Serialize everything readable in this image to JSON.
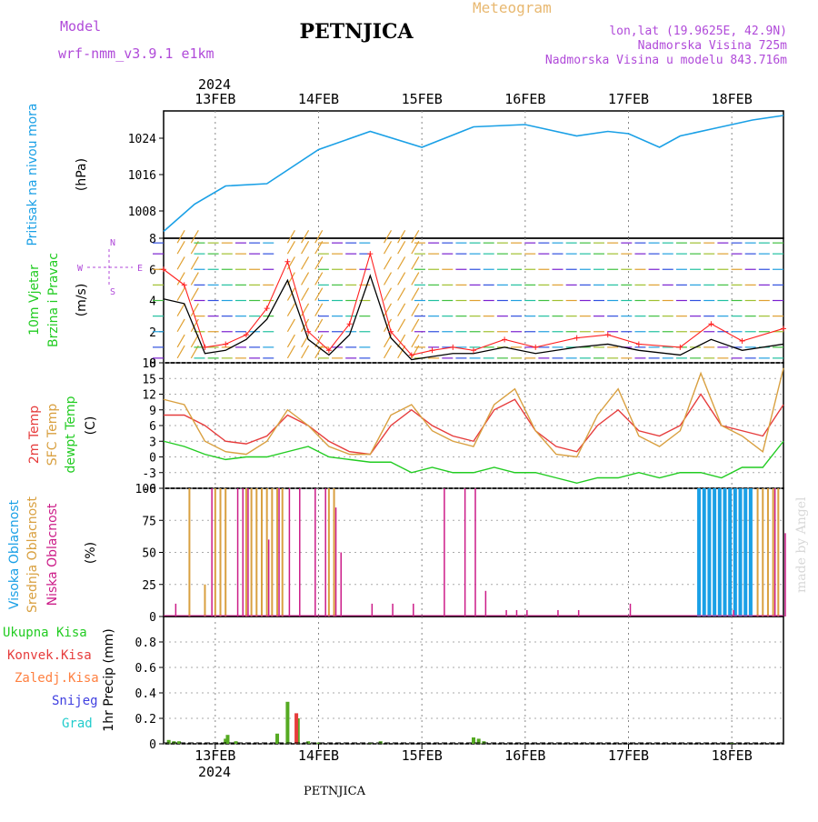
{
  "header": {
    "model_label": "Model",
    "model_name": "wrf-nmm_v3.9.1 e1km",
    "station": "PETNJICA",
    "meteogram": "Meteogram",
    "lonlat": "lon,lat (19.9625E, 42.9N)",
    "altitude": "Nadmorska Visina 725m",
    "model_altitude": "Nadmorska Visina u modelu 843.716m",
    "year": "2024",
    "footer_station": "PETNJICA",
    "watermark": "made by Angel"
  },
  "colors": {
    "pressure": "#1aa0e6",
    "t2m": "#e63c3c",
    "sfc": "#d9a040",
    "dewpt": "#22cc22",
    "high_cloud": "#1aa0e6",
    "mid_cloud": "#d9a040",
    "low_cloud": "#cc1c88",
    "total_precip": "#55aa22",
    "conv_precip": "#e63c3c",
    "zaledj": "#ff8040",
    "snow": "#4040e0",
    "grad": "#22cccc",
    "wind_speed": "#000000",
    "gust": "#ff2020"
  },
  "chart_data": [
    {
      "type": "line",
      "panel": "pressure",
      "ylabel": [
        "Pritisak na nivou mora",
        "(hPa)"
      ],
      "xticks": [
        "13FEB",
        "14FEB",
        "15FEB",
        "16FEB",
        "17FEB",
        "18FEB"
      ],
      "yticks": [
        1008,
        1016,
        1024
      ],
      "ylim": [
        1002,
        1030
      ],
      "x": [
        0.0,
        0.3,
        0.6,
        1.0,
        1.5,
        2.0,
        2.5,
        3.0,
        3.5,
        4.0,
        4.3,
        4.5,
        4.8,
        5.0,
        5.3,
        5.7,
        6.0
      ],
      "series": [
        {
          "values": [
            1003.5,
            1009.5,
            1013.5,
            1014.0,
            1021.5,
            1025.5,
            1022.0,
            1026.5,
            1027.0,
            1024.5,
            1025.5,
            1025.0,
            1022.0,
            1024.5,
            1026.0,
            1028.0,
            1029.0
          ]
        }
      ]
    },
    {
      "type": "line",
      "panel": "wind",
      "ylabel": [
        "10m Vjetar",
        "Brzina i Pravac",
        "(m/s)"
      ],
      "direction_key": [
        "N",
        "E",
        "W",
        "S"
      ],
      "yticks": [
        0,
        2,
        4,
        6,
        8
      ],
      "ylim": [
        0,
        8
      ],
      "x": [
        0.0,
        0.2,
        0.4,
        0.6,
        0.8,
        1.0,
        1.2,
        1.4,
        1.6,
        1.8,
        2.0,
        2.2,
        2.4,
        2.6,
        2.8,
        3.0,
        3.3,
        3.6,
        4.0,
        4.3,
        4.6,
        5.0,
        5.3,
        5.6,
        6.0
      ],
      "series": [
        {
          "values": [
            4.1,
            3.8,
            0.6,
            0.8,
            1.5,
            2.8,
            5.3,
            1.5,
            0.5,
            1.8,
            5.6,
            1.6,
            0.2,
            0.4,
            0.6,
            0.6,
            1.0,
            0.6,
            1.0,
            1.2,
            0.8,
            0.5,
            1.5,
            0.8,
            1.2
          ]
        },
        {
          "values": [
            6.0,
            5.0,
            1.0,
            1.2,
            1.8,
            3.5,
            6.5,
            2.0,
            0.8,
            2.5,
            7.0,
            2.0,
            0.5,
            0.8,
            1.0,
            0.8,
            1.5,
            1.0,
            1.6,
            1.8,
            1.2,
            1.0,
            2.5,
            1.4,
            2.2
          ]
        }
      ]
    },
    {
      "type": "line",
      "panel": "temperature",
      "ylabel": [
        "2m Temp",
        "SFC Temp",
        "dewpt Temp",
        "(C)"
      ],
      "yticks": [
        -6,
        -3,
        0,
        3,
        6,
        9,
        12,
        15,
        18
      ],
      "ylim": [
        -6,
        18
      ],
      "x": [
        0.0,
        0.2,
        0.4,
        0.6,
        0.8,
        1.0,
        1.2,
        1.4,
        1.6,
        1.8,
        2.0,
        2.2,
        2.4,
        2.6,
        2.8,
        3.0,
        3.2,
        3.4,
        3.6,
        3.8,
        4.0,
        4.2,
        4.4,
        4.6,
        4.8,
        5.0,
        5.2,
        5.4,
        5.6,
        5.8,
        6.0
      ],
      "series": [
        {
          "name": "2m Temp",
          "values": [
            8,
            8,
            6,
            3,
            2.5,
            4,
            8,
            6,
            3,
            1,
            0.5,
            6,
            9,
            6,
            4,
            3,
            9,
            11,
            5,
            2,
            1,
            6,
            9,
            5,
            4,
            6,
            12,
            6,
            5,
            4,
            10
          ]
        },
        {
          "name": "SFC Temp",
          "values": [
            11,
            10,
            3,
            1,
            0.5,
            3,
            9,
            6,
            2,
            0.5,
            0.5,
            8,
            10,
            5,
            3,
            2,
            10,
            13,
            5,
            0.5,
            0,
            8,
            13,
            4,
            2,
            5,
            16,
            6,
            4,
            1,
            17
          ]
        },
        {
          "name": "dewpt Temp",
          "values": [
            3,
            2,
            0.5,
            -0.5,
            0,
            0,
            1,
            2,
            0,
            -0.5,
            -1,
            -1,
            -3,
            -2,
            -3,
            -3,
            -2,
            -3,
            -3,
            -4,
            -5,
            -4,
            -4,
            -3,
            -4,
            -3,
            -3,
            -4,
            -2,
            -2,
            3
          ]
        }
      ]
    },
    {
      "type": "bar",
      "panel": "clouds",
      "ylabel": [
        "Visoka Oblacnost",
        "Srednja Oblacnost",
        "Niska Oblacnost",
        "(%)"
      ],
      "yticks": [
        0,
        25,
        50,
        75,
        100
      ],
      "ylim": [
        0,
        100
      ],
      "series": [
        {
          "name": "Visoka Oblacnost",
          "x": [
            5.2,
            5.25,
            5.3,
            5.35,
            5.4,
            5.45,
            5.5,
            5.55,
            5.6,
            5.65,
            5.7
          ],
          "values": [
            100,
            100,
            100,
            100,
            100,
            100,
            100,
            100,
            100,
            100,
            100
          ]
        },
        {
          "name": "Srednja Oblacnost",
          "x": [
            0.25,
            0.4,
            0.5,
            0.55,
            0.6,
            0.8,
            0.85,
            0.9,
            0.95,
            1.0,
            1.05,
            1.1,
            1.15,
            1.6,
            1.65,
            5.75,
            5.8,
            5.85,
            5.9,
            5.95
          ],
          "values": [
            100,
            25,
            100,
            100,
            100,
            100,
            100,
            100,
            100,
            100,
            100,
            100,
            100,
            100,
            100,
            100,
            100,
            100,
            100,
            100
          ]
        },
        {
          "name": "Niska Oblacnost",
          "x": [
            0.1,
            0.45,
            0.7,
            0.75,
            0.8,
            1.0,
            1.1,
            1.2,
            1.3,
            1.45,
            1.55,
            1.65,
            1.7,
            2.0,
            2.2,
            2.4,
            2.7,
            2.9,
            3.0,
            3.1,
            3.3,
            3.4,
            3.5,
            3.8,
            4.0,
            4.5,
            5.5,
            5.9,
            6.0
          ],
          "values": [
            10,
            100,
            100,
            100,
            100,
            60,
            100,
            100,
            100,
            100,
            100,
            85,
            50,
            10,
            10,
            10,
            100,
            100,
            100,
            20,
            5,
            5,
            5,
            5,
            5,
            10,
            5,
            100,
            65
          ]
        }
      ]
    },
    {
      "type": "bar",
      "panel": "precip",
      "ylabel": [
        "1hr Precip (mm)"
      ],
      "legend": [
        "Ukupna Kisa",
        "Konvek.Kisa",
        "Zaledj.Kisa",
        "Snijeg",
        "Grad"
      ],
      "yticks": [
        0,
        0.2,
        0.4,
        0.6,
        0.8
      ],
      "ylim": [
        0,
        1.0
      ],
      "series": [
        {
          "name": "Ukupna Kisa",
          "x": [
            0.05,
            0.1,
            0.15,
            0.6,
            0.62,
            0.7,
            1.1,
            1.2,
            1.3,
            1.4,
            1.5,
            2.0,
            2.1,
            3.0,
            3.05,
            3.1,
            5.5
          ],
          "values": [
            0.03,
            0.02,
            0.02,
            0.04,
            0.07,
            0.02,
            0.08,
            0.33,
            0.2,
            0.02,
            0.01,
            0.01,
            0.02,
            0.05,
            0.04,
            0.02,
            0.01
          ]
        },
        {
          "name": "Konvek.Kisa",
          "x": [
            1.25
          ],
          "values": [
            0.24
          ]
        }
      ]
    }
  ]
}
